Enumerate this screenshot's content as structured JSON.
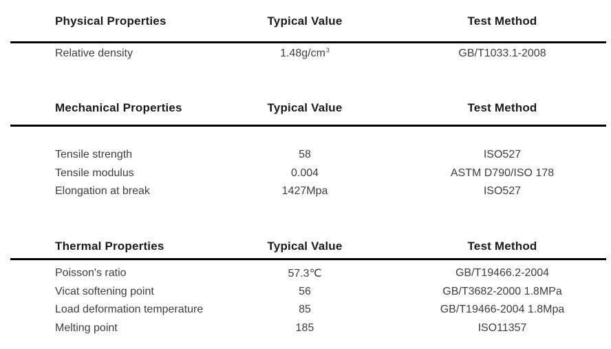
{
  "document": {
    "background": "#ffffff",
    "rule_color": "#000000",
    "header_text_color": "#1a1a1a",
    "body_text_color": "#3d3d3d"
  },
  "sections": [
    {
      "title": "Physical Properties",
      "value_header": "Typical Value",
      "method_header": "Test Method",
      "rows": [
        {
          "property": "Relative density",
          "value": "1.48g/cm",
          "value_sup": "3",
          "method": "GB/T1033.1-2008"
        }
      ]
    },
    {
      "title": "Mechanical Properties",
      "value_header": "Typical Value",
      "method_header": "Test Method",
      "rows": [
        {
          "property": "Tensile strength",
          "value": "58",
          "method": "ISO527"
        },
        {
          "property": "Tensile modulus",
          "value": "0.004",
          "method": "ASTM D790/ISO 178"
        },
        {
          "property": "Elongation at break",
          "value": "1427Mpa",
          "method": "ISO527"
        }
      ]
    },
    {
      "title": "Thermal Properties",
      "value_header": "Typical Value",
      "method_header": "Test Method",
      "rows": [
        {
          "property": "Poisson's ratio",
          "value": "57.3℃",
          "method": "GB/T19466.2-2004"
        },
        {
          "property": "Vicat softening point",
          "value": "56",
          "method": "GB/T3682-2000 1.8MPa"
        },
        {
          "property": "Load deformation temperature",
          "value": "85",
          "method": "GB/T19466-2004 1.8Mpa"
        },
        {
          "property": "Melting point",
          "value": "185",
          "method": "ISO11357"
        }
      ]
    }
  ]
}
